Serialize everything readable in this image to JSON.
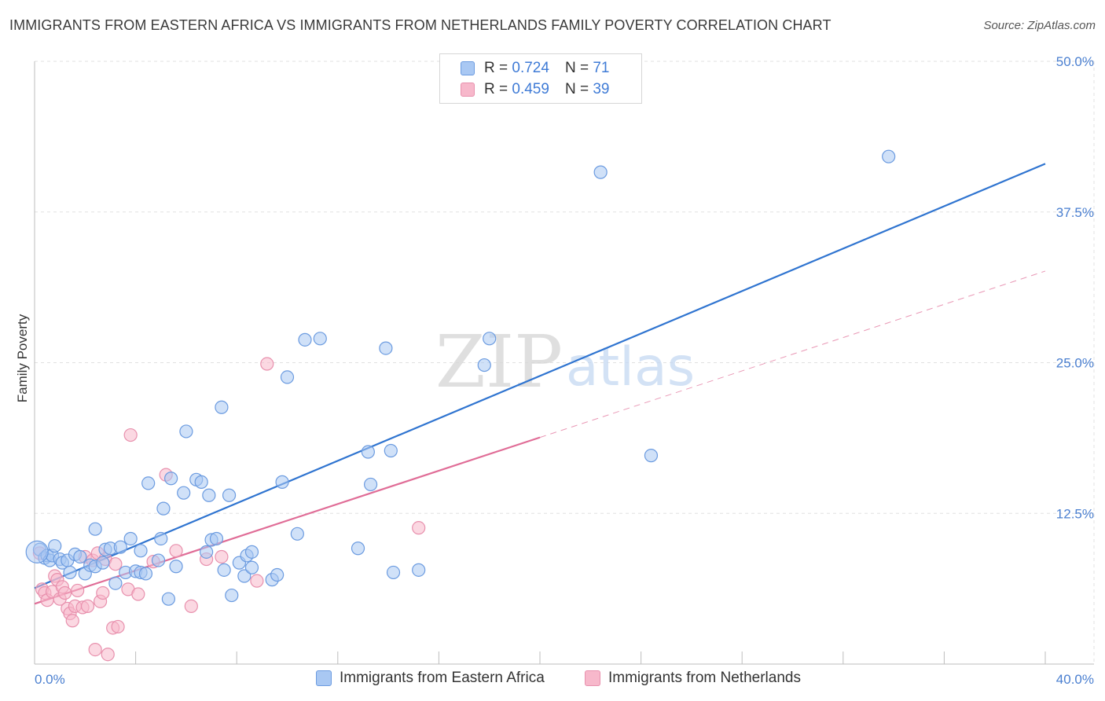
{
  "title": "IMMIGRANTS FROM EASTERN AFRICA VS IMMIGRANTS FROM NETHERLANDS FAMILY POVERTY CORRELATION CHART",
  "source": "Source: ZipAtlas.com",
  "watermark": {
    "zip": "ZIP",
    "atlas": "atlas"
  },
  "legend": {
    "r_label": "R =",
    "n_label": "N =",
    "rows": [
      {
        "r": "0.724",
        "n": "71"
      },
      {
        "r": "0.459",
        "n": "39"
      }
    ]
  },
  "bottom_legend": [
    "Immigrants from Eastern Africa",
    "Immigrants from Netherlands"
  ],
  "colors": {
    "blue_fill": "#a9c8f3",
    "blue_stroke": "#6b9be0",
    "blue_line": "#2f74d0",
    "pink_fill": "#f7b8cb",
    "pink_stroke": "#e890ad",
    "pink_line": "#e06d97",
    "tick_text": "#4a7fd0",
    "grid": "#e0e0e0"
  },
  "chart_data": {
    "type": "scatter",
    "title": "IMMIGRANTS FROM EASTERN AFRICA VS IMMIGRANTS FROM NETHERLANDS FAMILY POVERTY CORRELATION CHART",
    "xlabel": "",
    "ylabel": "Family Poverty",
    "xlim": [
      0,
      40
    ],
    "ylim": [
      0,
      50
    ],
    "x_tick_labels": [
      "0.0%",
      "40.0%"
    ],
    "y_ticks": [
      12.5,
      25.0,
      37.5,
      50.0
    ],
    "y_tick_labels": [
      "12.5%",
      "25.0%",
      "37.5%",
      "50.0%"
    ],
    "grid": true,
    "legend_position": "top-center",
    "series": [
      {
        "name": "Immigrants from Eastern Africa",
        "r": 0.724,
        "n": 71,
        "trend": {
          "x": [
            0,
            40
          ],
          "y": [
            6.3,
            41.5
          ],
          "dashed_from": null
        },
        "points": [
          [
            0.2,
            9.5
          ],
          [
            0.4,
            8.8
          ],
          [
            0.5,
            9.0
          ],
          [
            0.6,
            8.6
          ],
          [
            0.7,
            9.0
          ],
          [
            0.8,
            9.8
          ],
          [
            1.0,
            8.7
          ],
          [
            1.1,
            8.4
          ],
          [
            1.3,
            8.6
          ],
          [
            1.4,
            7.6
          ],
          [
            1.6,
            9.1
          ],
          [
            1.8,
            8.9
          ],
          [
            2.0,
            7.5
          ],
          [
            2.2,
            8.2
          ],
          [
            2.4,
            8.1
          ],
          [
            2.4,
            11.2
          ],
          [
            2.7,
            8.4
          ],
          [
            2.8,
            9.5
          ],
          [
            3.0,
            9.6
          ],
          [
            3.2,
            6.7
          ],
          [
            3.4,
            9.7
          ],
          [
            3.6,
            7.6
          ],
          [
            3.8,
            10.4
          ],
          [
            4.0,
            7.7
          ],
          [
            4.2,
            7.6
          ],
          [
            4.2,
            9.4
          ],
          [
            4.4,
            7.5
          ],
          [
            4.5,
            15.0
          ],
          [
            4.9,
            8.6
          ],
          [
            5.0,
            10.4
          ],
          [
            5.1,
            12.9
          ],
          [
            5.3,
            5.4
          ],
          [
            5.4,
            15.4
          ],
          [
            5.6,
            8.1
          ],
          [
            5.9,
            14.2
          ],
          [
            6.0,
            19.3
          ],
          [
            6.4,
            15.3
          ],
          [
            6.6,
            15.1
          ],
          [
            6.8,
            9.3
          ],
          [
            6.9,
            14.0
          ],
          [
            7.0,
            10.3
          ],
          [
            7.2,
            10.4
          ],
          [
            7.4,
            21.3
          ],
          [
            7.5,
            7.8
          ],
          [
            7.7,
            14.0
          ],
          [
            7.8,
            5.7
          ],
          [
            8.1,
            8.4
          ],
          [
            8.3,
            7.3
          ],
          [
            8.4,
            9.0
          ],
          [
            8.6,
            9.3
          ],
          [
            8.6,
            8.0
          ],
          [
            9.4,
            7.0
          ],
          [
            9.6,
            7.4
          ],
          [
            9.8,
            15.1
          ],
          [
            10.0,
            23.8
          ],
          [
            10.4,
            10.8
          ],
          [
            10.7,
            26.9
          ],
          [
            11.3,
            27.0
          ],
          [
            12.8,
            9.6
          ],
          [
            13.2,
            17.6
          ],
          [
            13.3,
            14.9
          ],
          [
            13.9,
            26.2
          ],
          [
            14.1,
            17.7
          ],
          [
            14.2,
            7.6
          ],
          [
            15.2,
            7.8
          ],
          [
            17.8,
            24.8
          ],
          [
            18.0,
            27.0
          ],
          [
            22.4,
            40.8
          ],
          [
            24.4,
            17.3
          ],
          [
            33.8,
            42.1
          ]
        ]
      },
      {
        "name": "Immigrants from Netherlands",
        "r": 0.459,
        "n": 39,
        "trend": {
          "x": [
            0,
            40
          ],
          "y": [
            5.0,
            32.6
          ],
          "dashed_from": 20
        },
        "points": [
          [
            0.2,
            9.2
          ],
          [
            0.3,
            6.2
          ],
          [
            0.4,
            5.9
          ],
          [
            0.5,
            5.3
          ],
          [
            0.7,
            6.0
          ],
          [
            0.8,
            7.3
          ],
          [
            0.9,
            7.0
          ],
          [
            1.0,
            5.4
          ],
          [
            1.1,
            6.4
          ],
          [
            1.2,
            5.9
          ],
          [
            1.3,
            4.6
          ],
          [
            1.4,
            4.2
          ],
          [
            1.5,
            3.6
          ],
          [
            1.6,
            4.8
          ],
          [
            1.7,
            6.1
          ],
          [
            1.9,
            4.7
          ],
          [
            2.0,
            8.9
          ],
          [
            2.1,
            4.8
          ],
          [
            2.3,
            8.6
          ],
          [
            2.4,
            1.2
          ],
          [
            2.5,
            9.2
          ],
          [
            2.6,
            5.2
          ],
          [
            2.7,
            5.9
          ],
          [
            2.8,
            8.7
          ],
          [
            2.9,
            0.8
          ],
          [
            3.1,
            3.0
          ],
          [
            3.2,
            8.3
          ],
          [
            3.3,
            3.1
          ],
          [
            3.7,
            6.2
          ],
          [
            3.8,
            19.0
          ],
          [
            4.1,
            5.8
          ],
          [
            4.7,
            8.5
          ],
          [
            5.2,
            15.7
          ],
          [
            5.6,
            9.4
          ],
          [
            6.2,
            4.8
          ],
          [
            6.8,
            8.7
          ],
          [
            7.4,
            8.9
          ],
          [
            8.8,
            6.9
          ],
          [
            9.2,
            24.9
          ],
          [
            15.2,
            11.3
          ]
        ]
      }
    ]
  }
}
